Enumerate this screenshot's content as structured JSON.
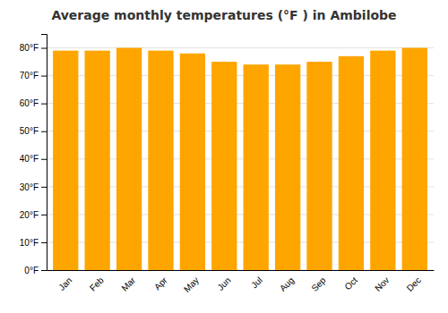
{
  "chart_data": {
    "type": "bar",
    "title": "Average monthly temperatures (°F ) in Ambilobe",
    "categories": [
      "Jan",
      "Feb",
      "Mar",
      "Apr",
      "May",
      "Jun",
      "Jul",
      "Aug",
      "Sep",
      "Oct",
      "Nov",
      "Dec"
    ],
    "values": [
      79,
      79,
      80,
      79,
      78,
      75,
      74,
      74,
      75,
      77,
      79,
      80
    ],
    "color": "#FFA500",
    "ylim": [
      0,
      85
    ],
    "yticks": [
      {
        "value": 0,
        "label": "0°F"
      },
      {
        "value": 10,
        "label": "10°F"
      },
      {
        "value": 20,
        "label": "20°F"
      },
      {
        "value": 30,
        "label": "30°F"
      },
      {
        "value": 40,
        "label": "40°F"
      },
      {
        "value": 50,
        "label": "50°F"
      },
      {
        "value": 60,
        "label": "60°F"
      },
      {
        "value": 70,
        "label": "70°F"
      },
      {
        "value": 80,
        "label": "80°F"
      }
    ],
    "grid": true
  }
}
